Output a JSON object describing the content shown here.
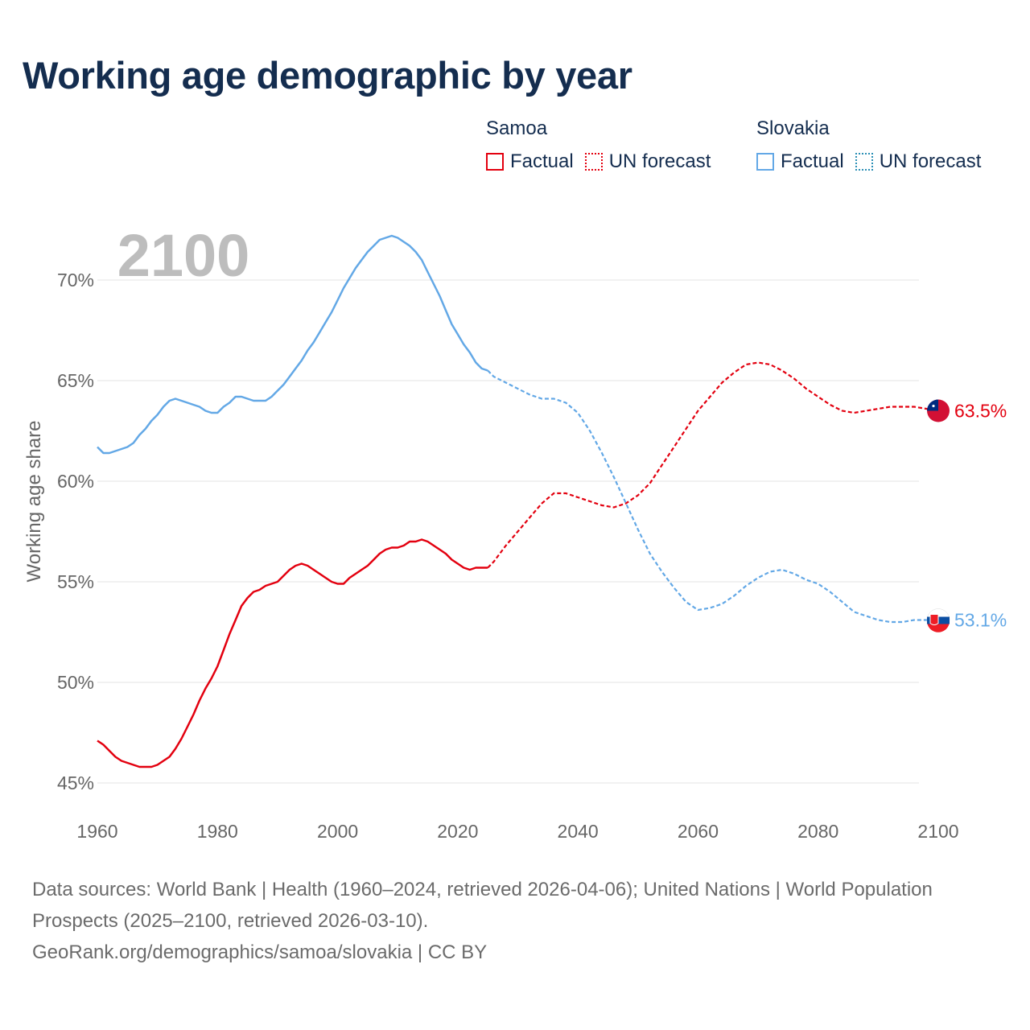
{
  "title": "Working age demographic by year",
  "legend": {
    "groups": [
      {
        "name": "Samoa",
        "factual_label": "Factual",
        "forecast_label": "UN forecast",
        "color": "#e3000f"
      },
      {
        "name": "Slovakia",
        "factual_label": "Factual",
        "forecast_label": "UN forecast",
        "color": "#63a8e6"
      }
    ]
  },
  "year_watermark": "2100",
  "footer": {
    "line1": "Data sources: World Bank | Health (1960–2024, retrieved 2026-04-06); United Nations | World Population Prospects (2025–2100, retrieved 2026-03-10).",
    "line2": "GeoRank.org/demographics/samoa/slovakia | CC BY"
  },
  "chart_data": {
    "type": "line",
    "title": "Working age demographic by year",
    "xlabel": "",
    "ylabel": "Working age share",
    "xlim": [
      1960,
      2100
    ],
    "ylim": [
      45,
      70
    ],
    "x_ticks": [
      1960,
      1980,
      2000,
      2020,
      2040,
      2060,
      2080,
      2100
    ],
    "y_ticks": [
      45,
      50,
      55,
      60,
      65,
      70
    ],
    "x_tick_labels": [
      "1960",
      "1980",
      "2000",
      "2020",
      "2040",
      "2060",
      "2080",
      "2100"
    ],
    "y_tick_labels": [
      "45%",
      "50%",
      "55%",
      "60%",
      "65%",
      "70%"
    ],
    "grid": true,
    "series": [
      {
        "name": "Samoa",
        "color": "#e3000f",
        "end_label": "63.5%",
        "factual": {
          "x": [
            1960,
            1961,
            1962,
            1963,
            1964,
            1965,
            1966,
            1967,
            1968,
            1969,
            1970,
            1971,
            1972,
            1973,
            1974,
            1975,
            1976,
            1977,
            1978,
            1979,
            1980,
            1981,
            1982,
            1983,
            1984,
            1985,
            1986,
            1987,
            1988,
            1989,
            1990,
            1991,
            1992,
            1993,
            1994,
            1995,
            1996,
            1997,
            1998,
            1999,
            2000,
            2001,
            2002,
            2003,
            2004,
            2005,
            2006,
            2007,
            2008,
            2009,
            2010,
            2011,
            2012,
            2013,
            2014,
            2015,
            2016,
            2017,
            2018,
            2019,
            2020,
            2021,
            2022,
            2023,
            2024,
            2025
          ],
          "y": [
            47.1,
            46.9,
            46.6,
            46.3,
            46.1,
            46.0,
            45.9,
            45.8,
            45.8,
            45.8,
            45.9,
            46.1,
            46.3,
            46.7,
            47.2,
            47.8,
            48.4,
            49.1,
            49.7,
            50.2,
            50.8,
            51.6,
            52.4,
            53.1,
            53.8,
            54.2,
            54.5,
            54.6,
            54.8,
            54.9,
            55.0,
            55.3,
            55.6,
            55.8,
            55.9,
            55.8,
            55.6,
            55.4,
            55.2,
            55.0,
            54.9,
            54.9,
            55.2,
            55.4,
            55.6,
            55.8,
            56.1,
            56.4,
            56.6,
            56.7,
            56.7,
            56.8,
            57.0,
            57.0,
            57.1,
            57.0,
            56.8,
            56.6,
            56.4,
            56.1,
            55.9,
            55.7,
            55.6,
            55.7,
            55.7,
            55.7
          ]
        },
        "forecast": {
          "x": [
            2025,
            2026,
            2028,
            2030,
            2032,
            2034,
            2036,
            2038,
            2040,
            2042,
            2044,
            2046,
            2048,
            2050,
            2052,
            2054,
            2056,
            2058,
            2060,
            2062,
            2064,
            2066,
            2068,
            2070,
            2072,
            2074,
            2076,
            2078,
            2080,
            2082,
            2084,
            2086,
            2088,
            2090,
            2092,
            2094,
            2096,
            2098,
            2100
          ],
          "y": [
            55.7,
            56.0,
            56.8,
            57.5,
            58.2,
            58.9,
            59.4,
            59.4,
            59.2,
            59.0,
            58.8,
            58.7,
            58.9,
            59.3,
            59.9,
            60.8,
            61.7,
            62.6,
            63.5,
            64.2,
            64.9,
            65.4,
            65.8,
            65.9,
            65.8,
            65.5,
            65.1,
            64.6,
            64.2,
            63.8,
            63.5,
            63.4,
            63.5,
            63.6,
            63.7,
            63.7,
            63.7,
            63.6,
            63.5
          ]
        }
      },
      {
        "name": "Slovakia",
        "color": "#63a8e6",
        "end_label": "53.1%",
        "factual": {
          "x": [
            1960,
            1961,
            1962,
            1963,
            1964,
            1965,
            1966,
            1967,
            1968,
            1969,
            1970,
            1971,
            1972,
            1973,
            1974,
            1975,
            1976,
            1977,
            1978,
            1979,
            1980,
            1981,
            1982,
            1983,
            1984,
            1985,
            1986,
            1987,
            1988,
            1989,
            1990,
            1991,
            1992,
            1993,
            1994,
            1995,
            1996,
            1997,
            1998,
            1999,
            2000,
            2001,
            2002,
            2003,
            2004,
            2005,
            2006,
            2007,
            2008,
            2009,
            2010,
            2011,
            2012,
            2013,
            2014,
            2015,
            2016,
            2017,
            2018,
            2019,
            2020,
            2021,
            2022,
            2023,
            2024,
            2025
          ],
          "y": [
            61.7,
            61.4,
            61.4,
            61.5,
            61.6,
            61.7,
            61.9,
            62.3,
            62.6,
            63.0,
            63.3,
            63.7,
            64.0,
            64.1,
            64.0,
            63.9,
            63.8,
            63.7,
            63.5,
            63.4,
            63.4,
            63.7,
            63.9,
            64.2,
            64.2,
            64.1,
            64.0,
            64.0,
            64.0,
            64.2,
            64.5,
            64.8,
            65.2,
            65.6,
            66.0,
            66.5,
            66.9,
            67.4,
            67.9,
            68.4,
            69.0,
            69.6,
            70.1,
            70.6,
            71.0,
            71.4,
            71.7,
            72.0,
            72.1,
            72.2,
            72.1,
            71.9,
            71.7,
            71.4,
            71.0,
            70.4,
            69.8,
            69.2,
            68.5,
            67.8,
            67.3,
            66.8,
            66.4,
            65.9,
            65.6,
            65.5
          ]
        },
        "forecast": {
          "x": [
            2025,
            2026,
            2028,
            2030,
            2032,
            2034,
            2036,
            2038,
            2040,
            2042,
            2044,
            2046,
            2048,
            2050,
            2052,
            2054,
            2056,
            2058,
            2060,
            2062,
            2064,
            2066,
            2068,
            2070,
            2072,
            2074,
            2076,
            2078,
            2080,
            2082,
            2084,
            2086,
            2088,
            2090,
            2092,
            2094,
            2096,
            2098,
            2100
          ],
          "y": [
            65.5,
            65.2,
            64.9,
            64.6,
            64.3,
            64.1,
            64.1,
            63.9,
            63.4,
            62.5,
            61.4,
            60.2,
            58.9,
            57.6,
            56.4,
            55.5,
            54.7,
            54.0,
            53.6,
            53.7,
            53.9,
            54.3,
            54.8,
            55.2,
            55.5,
            55.6,
            55.4,
            55.1,
            54.9,
            54.5,
            54.0,
            53.5,
            53.3,
            53.1,
            53.0,
            53.0,
            53.1,
            53.1,
            53.1
          ]
        }
      }
    ]
  }
}
